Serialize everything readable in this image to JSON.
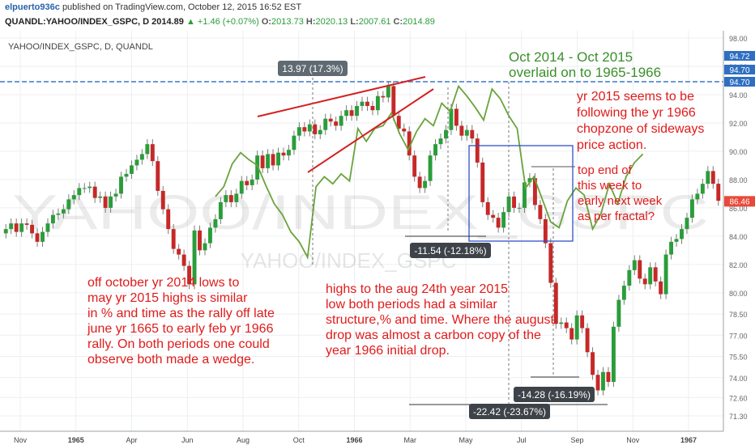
{
  "header": {
    "username": "elpuerto936c",
    "published_text": "published on TradingView.com, October 12, 2015 16:52 EST",
    "symbol": "QUANDL:YAHOO/INDEX_GSPC, D",
    "last_value": "2014.89",
    "change": "+1.46 (+0.07%)",
    "open_label": "O:",
    "open": "2013.73",
    "high_label": "H:",
    "high": "2020.13",
    "low_label": "L:",
    "low": "2007.61",
    "close_label": "C:",
    "close": "2014.89"
  },
  "colors": {
    "up_candle": "#2a9d3a",
    "down_candle": "#c62828",
    "overlay": "#6aa33a",
    "annotation_red": "#e01b1b",
    "annotation_green": "#3a8f2a",
    "dash_line": "#3a78c8",
    "price_tag": "#2f6fc1",
    "last_tag": "#e8493a"
  },
  "chart_data": {
    "type": "candlestick",
    "title": "YAHOO/INDEX_GSPC, D, QUANDL",
    "watermark": "YAHOO/INDEX_GSPC",
    "x_ticks": [
      "Nov",
      "1965",
      "Apr",
      "Jun",
      "Aug",
      "Oct",
      "1966",
      "Mar",
      "May",
      "Jul",
      "Sep",
      "Nov",
      "1967"
    ],
    "y_ticks": [
      "98.00",
      "96.00",
      "94.00",
      "92.00",
      "90.00",
      "88.00",
      "86.00",
      "84.00",
      "82.00",
      "80.00",
      "78.50",
      "77.00",
      "75.50",
      "74.00",
      "72.60",
      "71.30"
    ],
    "ylim": [
      71.3,
      98.0
    ],
    "price_tags": [
      "94.72",
      "94.70",
      "94.70"
    ],
    "last_price": "86.46",
    "series": [
      {
        "name": "S&P 500 1965-1967 daily candles (approx. closes)",
        "values": [
          84.5,
          84.9,
          84.3,
          84.9,
          84.8,
          84.2,
          83.6,
          84.3,
          84.9,
          85.5,
          85.6,
          85.9,
          86.6,
          86.9,
          87.4,
          87.4,
          87.5,
          86.7,
          86.8,
          86.0,
          86.8,
          87.0,
          88.2,
          88.4,
          89.0,
          89.4,
          89.8,
          90.5,
          89.3,
          87.2,
          85.9,
          84.5,
          83.1,
          82.7,
          81.9,
          80.6,
          84.4,
          83.0,
          83.5,
          84.6,
          85.2,
          86.4,
          86.9,
          86.4,
          87.0,
          87.9,
          87.6,
          88.0,
          89.7,
          88.8,
          89.8,
          89.0,
          89.9,
          89.7,
          90.1,
          91.1,
          91.7,
          91.4,
          91.9,
          91.2,
          91.5,
          92.3,
          92.1,
          91.8,
          92.5,
          92.9,
          92.5,
          93.2,
          93.5,
          93.2,
          92.9,
          93.9,
          93.8,
          94.6,
          92.5,
          91.6,
          91.4,
          89.7,
          88.2,
          87.4,
          87.9,
          89.7,
          90.5,
          90.9,
          91.5,
          93.0,
          91.8,
          91.1,
          91.5,
          90.9,
          89.2,
          86.4,
          85.5,
          85.3,
          84.6,
          85.7,
          86.8,
          86.0,
          86.0,
          87.8,
          88.1,
          86.2,
          85.2,
          83.5,
          80.7,
          77.8,
          77.9,
          77.5,
          76.7,
          78.4,
          77.5,
          75.8,
          74.2,
          73.1,
          74.4,
          73.7,
          77.6,
          79.5,
          80.5,
          81.6,
          82.3,
          81.0,
          80.6,
          81.8,
          80.8,
          79.9,
          82.7,
          83.6,
          83.8,
          84.5,
          85.3,
          86.6,
          87.0,
          87.7,
          88.6,
          87.7,
          86.5
        ]
      },
      {
        "name": "S&P 500 Oct 2014 - Oct 2015 overlay (approx.)",
        "values": [
          86.8,
          87.5,
          89.1,
          89.9,
          89.4,
          89.0,
          87.6,
          86.3,
          85.5,
          84.3,
          83.6,
          82.5,
          87.5,
          88.2,
          87.7,
          88.4,
          87.9,
          91.6,
          90.7,
          91.6,
          91.8,
          92.7,
          91.2,
          90.1,
          91.4,
          92.3,
          91.8,
          93.4,
          92.8,
          94.6,
          93.9,
          93.1,
          92.2,
          94.4,
          93.7,
          92.5,
          91.6,
          87.4,
          88.2,
          86.6,
          85.0,
          84.6,
          86.5,
          87.4,
          86.9,
          84.5,
          85.6,
          87.7,
          86.3,
          88.2,
          89.2,
          89.8
        ]
      }
    ],
    "annotations": [
      "Oct 2014 - Oct 2015",
      "overlaid on to 1965-1966",
      "yr 2015 seems to be",
      "following the yr 1966",
      "chopzone of sideways",
      "price action.",
      "top end of",
      "this week to",
      "early next week",
      "as per fractal?",
      "off october yr 2014 lows to",
      "may yr 2015 highs is similar",
      "in % and time as the rally off late",
      "june yr 1665  to early feb yr 1966",
      "rally. On both periods one could",
      "observe both made a wedge.",
      "highs to the aug 24th year 2015",
      "low both periods had a similar",
      "structure,% and time. Where the august",
      "drop was almost a carbon copy of the",
      "year 1966 initial drop."
    ],
    "measurements": [
      "13.97 (17.3%)",
      "-11.54 (-12.18%)",
      "-14.28 (-16.19%)",
      "-22.42 (-23.67%)"
    ]
  }
}
